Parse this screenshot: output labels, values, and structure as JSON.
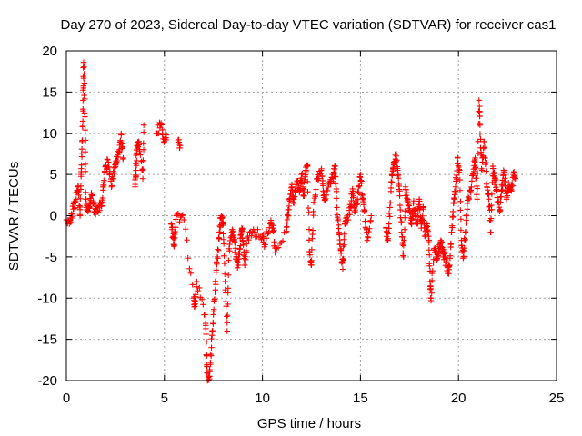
{
  "chart_data": {
    "type": "scatter",
    "title": "Day 270 of 2023, Sidereal Day-to-day VTEC variation (SDTVAR) for receiver cas1",
    "xlabel": "GPS time / hours",
    "ylabel": "SDTVAR / TECUs",
    "xlim": [
      0,
      25
    ],
    "ylim": [
      -20,
      20
    ],
    "xticks": [
      "0",
      "5",
      "10",
      "15",
      "20",
      "25"
    ],
    "yticks": [
      "-20",
      "-15",
      "-10",
      "-5",
      "0",
      "5",
      "10",
      "15",
      "20"
    ],
    "grid": true,
    "marker": "+",
    "color": "#ff0000",
    "series_outline": [
      [
        0.0,
        -0.5
      ],
      [
        0.2,
        -0.5
      ],
      [
        0.35,
        0.8
      ],
      [
        0.5,
        2.0
      ],
      [
        0.6,
        3.5
      ],
      [
        0.7,
        0.0
      ],
      [
        0.75,
        5.0
      ],
      [
        0.8,
        9.0
      ],
      [
        0.85,
        14.0
      ],
      [
        0.88,
        18.6
      ],
      [
        0.95,
        12.0
      ],
      [
        1.0,
        2.0
      ],
      [
        1.1,
        0.5
      ],
      [
        1.2,
        1.5
      ],
      [
        1.3,
        2.5
      ],
      [
        1.45,
        0.5
      ],
      [
        1.6,
        1.0
      ],
      [
        1.8,
        1.2
      ],
      [
        1.9,
        4.0
      ],
      [
        2.0,
        6.0
      ],
      [
        2.15,
        6.5
      ],
      [
        2.3,
        3.5
      ],
      [
        2.45,
        5.8
      ],
      [
        2.55,
        6.5
      ],
      [
        2.7,
        8.0
      ],
      [
        2.8,
        9.8
      ],
      [
        2.9,
        7.0
      ],
      [
        3.5,
        3.5
      ],
      [
        3.55,
        5.5
      ],
      [
        3.6,
        8.5
      ],
      [
        3.7,
        9.0
      ],
      [
        3.9,
        4.5
      ],
      [
        3.95,
        11.0
      ],
      [
        4.6,
        10.0
      ],
      [
        4.8,
        11.0
      ],
      [
        5.0,
        9.0
      ],
      [
        5.1,
        9.8
      ],
      [
        5.7,
        9.2
      ],
      [
        5.8,
        8.5
      ],
      [
        5.35,
        -1.0
      ],
      [
        5.45,
        -2.5
      ],
      [
        5.5,
        -3.5
      ],
      [
        5.6,
        0.0
      ],
      [
        6.0,
        -0.5
      ],
      [
        6.5,
        -10.0
      ],
      [
        6.55,
        -11.0
      ],
      [
        6.65,
        -8.0
      ],
      [
        7.1,
        -12.0
      ],
      [
        7.15,
        -17.0
      ],
      [
        7.2,
        -20.0
      ],
      [
        7.3,
        -19.5
      ],
      [
        7.4,
        -16.0
      ],
      [
        7.5,
        -12.0
      ],
      [
        7.6,
        -9.0
      ],
      [
        7.7,
        -5.0
      ],
      [
        7.8,
        -2.0
      ],
      [
        7.9,
        0.0
      ],
      [
        8.0,
        -1.0
      ],
      [
        8.1,
        -8.0
      ],
      [
        8.2,
        -14.0
      ],
      [
        8.3,
        -4.0
      ],
      [
        8.45,
        -2.0
      ],
      [
        8.55,
        -3.0
      ],
      [
        8.65,
        -5.0
      ],
      [
        8.75,
        -6.0
      ],
      [
        8.85,
        -4.0
      ],
      [
        8.95,
        -1.5
      ],
      [
        9.0,
        -3.0
      ],
      [
        9.1,
        -6.0
      ],
      [
        9.25,
        -2.5
      ],
      [
        9.6,
        -2.0
      ],
      [
        10.0,
        -2.5
      ],
      [
        10.1,
        -3.5
      ],
      [
        10.4,
        -1.0
      ],
      [
        10.55,
        -1.5
      ],
      [
        10.65,
        -4.5
      ],
      [
        11.2,
        -2.0
      ],
      [
        11.3,
        0.0
      ],
      [
        11.4,
        2.0
      ],
      [
        11.5,
        3.5
      ],
      [
        11.6,
        1.5
      ],
      [
        11.75,
        4.0
      ],
      [
        11.9,
        3.0
      ],
      [
        12.0,
        5.0
      ],
      [
        12.1,
        2.5
      ],
      [
        12.2,
        5.5
      ],
      [
        12.3,
        6.0
      ],
      [
        12.4,
        -4.5
      ],
      [
        12.5,
        -6.0
      ],
      [
        12.6,
        0.5
      ],
      [
        12.8,
        4.5
      ],
      [
        13.0,
        5.5
      ],
      [
        13.1,
        3.0
      ],
      [
        13.2,
        2.0
      ],
      [
        13.4,
        4.0
      ],
      [
        13.6,
        4.5
      ],
      [
        13.7,
        6.0
      ],
      [
        13.8,
        1.0
      ],
      [
        13.9,
        -2.0
      ],
      [
        14.0,
        -4.0
      ],
      [
        14.1,
        -6.5
      ],
      [
        14.2,
        -1.0
      ],
      [
        14.35,
        -0.5
      ],
      [
        14.5,
        1.0
      ],
      [
        14.6,
        3.0
      ],
      [
        14.7,
        0.5
      ],
      [
        14.85,
        2.0
      ],
      [
        15.0,
        5.0
      ],
      [
        15.1,
        2.5
      ],
      [
        15.2,
        0.5
      ],
      [
        15.35,
        -3.0
      ],
      [
        15.55,
        0.0
      ],
      [
        16.3,
        -1.5
      ],
      [
        16.4,
        -3.0
      ],
      [
        16.5,
        1.0
      ],
      [
        16.6,
        5.0
      ],
      [
        16.7,
        6.5
      ],
      [
        16.8,
        7.5
      ],
      [
        16.9,
        5.5
      ],
      [
        17.0,
        3.0
      ],
      [
        17.1,
        -2.0
      ],
      [
        17.2,
        -5.0
      ],
      [
        17.3,
        3.5
      ],
      [
        17.4,
        2.0
      ],
      [
        17.5,
        0.5
      ],
      [
        17.6,
        -1.0
      ],
      [
        17.7,
        1.5
      ],
      [
        17.8,
        0.0
      ],
      [
        17.9,
        -1.0
      ],
      [
        18.0,
        2.0
      ],
      [
        18.1,
        -1.5
      ],
      [
        18.2,
        1.0
      ],
      [
        18.3,
        -2.5
      ],
      [
        18.4,
        -1.0
      ],
      [
        18.5,
        -3.0
      ],
      [
        18.55,
        -8.0
      ],
      [
        18.6,
        -10.0
      ],
      [
        18.75,
        -4.0
      ],
      [
        18.9,
        -5.0
      ],
      [
        19.0,
        -4.0
      ],
      [
        19.1,
        -3.0
      ],
      [
        19.2,
        -4.5
      ],
      [
        19.3,
        -5.0
      ],
      [
        19.45,
        -7.0
      ],
      [
        19.55,
        -6.0
      ],
      [
        19.65,
        -2.0
      ],
      [
        19.75,
        1.5
      ],
      [
        19.85,
        3.5
      ],
      [
        19.95,
        7.0
      ],
      [
        20.05,
        5.5
      ],
      [
        20.15,
        -3.0
      ],
      [
        20.25,
        -5.0
      ],
      [
        20.35,
        -2.0
      ],
      [
        20.45,
        1.5
      ],
      [
        20.6,
        3.0
      ],
      [
        20.75,
        5.0
      ],
      [
        20.85,
        7.0
      ],
      [
        20.95,
        2.0
      ],
      [
        21.05,
        14.0
      ],
      [
        21.1,
        11.0
      ],
      [
        21.2,
        5.5
      ],
      [
        21.3,
        9.0
      ],
      [
        21.45,
        3.5
      ],
      [
        21.55,
        2.0
      ],
      [
        21.65,
        -2.0
      ],
      [
        21.75,
        6.0
      ],
      [
        21.85,
        4.5
      ],
      [
        21.95,
        3.0
      ],
      [
        22.1,
        0.5
      ],
      [
        22.2,
        3.0
      ],
      [
        22.3,
        5.5
      ],
      [
        22.45,
        2.0
      ],
      [
        22.55,
        4.0
      ],
      [
        22.7,
        3.0
      ],
      [
        22.8,
        5.0
      ],
      [
        22.9,
        4.5
      ]
    ]
  }
}
